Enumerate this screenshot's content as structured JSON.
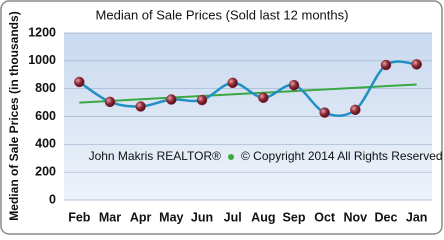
{
  "chart_data": {
    "type": "line",
    "title": "Median of Sale Prices (Sold last 12 months)",
    "y_label": "Median of Sale Prices (in thousands)",
    "annotations": [
      "John Makris REALTOR®",
      "© Copyright 2014 All Rights Reserved"
    ],
    "categories": [
      "Feb",
      "Mar",
      "Apr",
      "May",
      "Jun",
      "Jul",
      "Aug",
      "Sep",
      "Oct",
      "Nov",
      "Dec",
      "Jan"
    ],
    "series": [
      {
        "color": "#1f8fc4",
        "marker_color": "#8b2a35",
        "values": [
          848,
          705,
          672,
          722,
          718,
          842,
          735,
          825,
          628,
          648,
          970,
          975
        ]
      }
    ],
    "trend_line": {
      "color": "#3aa843",
      "values": [
        700,
        830
      ]
    },
    "ylim": [
      0,
      1200
    ],
    "yticks": [
      0,
      200,
      400,
      600,
      800,
      1000,
      1200
    ],
    "grid": true
  }
}
